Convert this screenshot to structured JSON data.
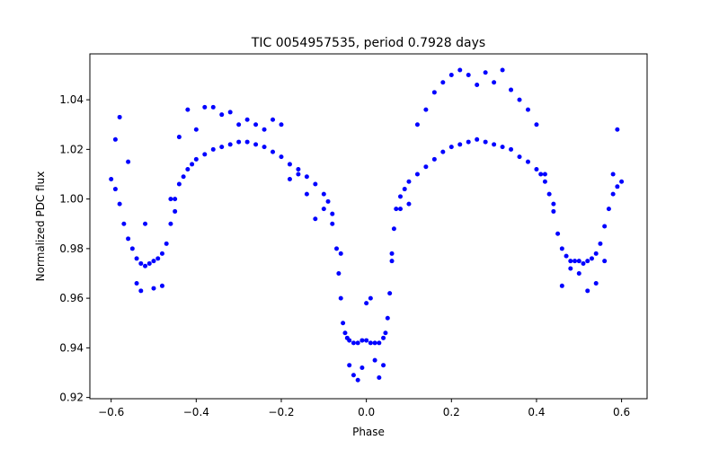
{
  "chart_data": {
    "type": "scatter",
    "title": "TIC 0054957535, period 0.7928 days",
    "xlabel": "Phase",
    "ylabel": "Normalized PDC flux",
    "xlim": [
      -0.65,
      0.66
    ],
    "ylim": [
      0.9195,
      1.0585
    ],
    "xticks": [
      -0.6,
      -0.4,
      -0.2,
      0.0,
      0.2,
      0.4,
      0.6
    ],
    "xtick_labels": [
      "−0.6",
      "−0.4",
      "−0.2",
      "0.0",
      "0.2",
      "0.4",
      "0.6"
    ],
    "yticks": [
      0.92,
      0.94,
      0.96,
      0.98,
      1.0,
      1.02,
      1.04
    ],
    "ytick_labels": [
      "0.92",
      "0.94",
      "0.96",
      "0.98",
      "1.00",
      "1.02",
      "1.04"
    ],
    "grid": false,
    "legend": "none",
    "marker_color": "#0000ff",
    "series": [
      {
        "x": [
          -0.6,
          -0.59,
          -0.58,
          -0.57,
          -0.56,
          -0.55,
          -0.54,
          -0.53,
          -0.52,
          -0.51,
          -0.5,
          -0.49,
          -0.48,
          -0.47,
          -0.46,
          -0.45,
          -0.44,
          -0.43,
          -0.42,
          -0.41,
          -0.4,
          -0.38,
          -0.36,
          -0.34,
          -0.32,
          -0.3,
          -0.28,
          -0.26,
          -0.24,
          -0.22,
          -0.2,
          -0.18,
          -0.16,
          -0.14,
          -0.12,
          -0.1,
          -0.09,
          -0.08,
          -0.07,
          -0.065,
          -0.06,
          -0.055,
          -0.05,
          -0.045,
          -0.04,
          -0.03,
          -0.02,
          -0.01,
          0.0,
          0.01,
          0.02,
          0.03,
          0.04,
          0.045,
          0.05,
          0.055,
          0.06,
          0.065,
          0.07,
          0.08,
          0.09,
          0.1,
          0.12,
          0.14,
          0.16,
          0.18,
          0.2,
          0.22,
          0.24,
          0.26,
          0.28,
          0.3,
          0.32,
          0.34,
          0.36,
          0.38,
          0.4,
          0.41,
          0.42,
          0.43,
          0.44,
          0.45,
          0.46,
          0.47,
          0.48,
          0.49,
          0.5,
          0.51,
          0.52,
          0.53,
          0.54,
          0.55,
          0.56,
          0.57,
          0.58,
          0.59,
          0.6
        ],
        "y": [
          1.008,
          1.004,
          0.998,
          0.99,
          0.984,
          0.98,
          0.976,
          0.974,
          0.973,
          0.974,
          0.975,
          0.976,
          0.978,
          0.982,
          0.99,
          1.0,
          1.006,
          1.009,
          1.012,
          1.014,
          1.016,
          1.018,
          1.02,
          1.021,
          1.022,
          1.023,
          1.023,
          1.022,
          1.021,
          1.019,
          1.017,
          1.014,
          1.012,
          1.009,
          1.006,
          1.002,
          0.999,
          0.994,
          0.98,
          0.97,
          0.96,
          0.95,
          0.946,
          0.944,
          0.943,
          0.942,
          0.942,
          0.943,
          0.943,
          0.942,
          0.942,
          0.942,
          0.944,
          0.946,
          0.952,
          0.962,
          0.975,
          0.988,
          0.996,
          1.001,
          1.004,
          1.007,
          1.01,
          1.013,
          1.016,
          1.019,
          1.021,
          1.022,
          1.023,
          1.024,
          1.023,
          1.022,
          1.021,
          1.02,
          1.017,
          1.015,
          1.012,
          1.01,
          1.007,
          1.002,
          0.995,
          0.986,
          0.98,
          0.977,
          0.975,
          0.975,
          0.975,
          0.974,
          0.975,
          0.976,
          0.978,
          0.982,
          0.989,
          0.996,
          1.002,
          1.005,
          1.007
        ]
      },
      {
        "x": [
          -0.59,
          -0.58,
          -0.56,
          -0.54,
          -0.53,
          -0.52,
          -0.5,
          -0.48,
          -0.46,
          -0.45,
          -0.44,
          -0.42,
          -0.4,
          -0.38,
          -0.36,
          -0.34,
          -0.32,
          -0.3,
          -0.28,
          -0.26,
          -0.24,
          -0.22,
          -0.2,
          -0.18,
          -0.16,
          -0.14,
          -0.12,
          -0.1,
          -0.08,
          -0.06,
          -0.04,
          -0.03,
          -0.02,
          -0.01,
          0.0,
          0.01,
          0.02,
          0.03,
          0.04,
          0.06,
          0.08,
          0.1,
          0.12,
          0.14,
          0.16,
          0.18,
          0.2,
          0.22,
          0.24,
          0.26,
          0.28,
          0.3,
          0.32,
          0.34,
          0.36,
          0.38,
          0.4,
          0.42,
          0.44,
          0.46,
          0.48,
          0.5,
          0.52,
          0.54,
          0.56,
          0.58,
          0.59
        ],
        "y": [
          1.024,
          1.033,
          1.015,
          0.966,
          0.963,
          0.99,
          0.964,
          0.965,
          1.0,
          0.995,
          1.025,
          1.036,
          1.028,
          1.037,
          1.037,
          1.034,
          1.035,
          1.03,
          1.032,
          1.03,
          1.028,
          1.032,
          1.03,
          1.008,
          1.01,
          1.002,
          0.992,
          0.996,
          0.99,
          0.978,
          0.933,
          0.929,
          0.927,
          0.932,
          0.958,
          0.96,
          0.935,
          0.928,
          0.933,
          0.978,
          0.996,
          0.998,
          1.03,
          1.036,
          1.043,
          1.047,
          1.05,
          1.052,
          1.05,
          1.046,
          1.051,
          1.047,
          1.052,
          1.044,
          1.04,
          1.036,
          1.03,
          1.01,
          0.998,
          0.965,
          0.972,
          0.97,
          0.963,
          0.966,
          0.975,
          1.01,
          1.028
        ]
      }
    ]
  }
}
